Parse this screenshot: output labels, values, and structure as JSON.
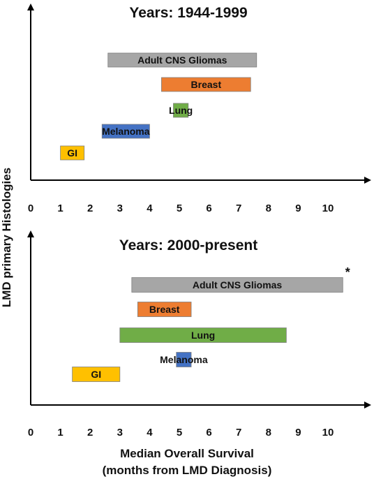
{
  "chart_data": [
    {
      "type": "bar",
      "subtype": "horizontal-range",
      "title": "Years: 1944-1999",
      "x": [
        0,
        1,
        2,
        3,
        4,
        5,
        6,
        7,
        8,
        9,
        10
      ],
      "xlim": [
        0,
        11
      ],
      "bars": [
        {
          "label": "Adult CNS Gliomas",
          "start": 2.6,
          "end": 7.6,
          "color": "#a6a6a6"
        },
        {
          "label": "Breast",
          "start": 4.4,
          "end": 7.4,
          "color": "#ed7d31"
        },
        {
          "label": "Lung",
          "start": 4.8,
          "end": 5.3,
          "color": "#70ad47"
        },
        {
          "label": "Melanoma",
          "start": 2.4,
          "end": 4.0,
          "color": "#4472c4"
        },
        {
          "label": "GI",
          "start": 1.0,
          "end": 1.8,
          "color": "#ffc000"
        }
      ]
    },
    {
      "type": "bar",
      "subtype": "horizontal-range",
      "title": "Years: 2000-present",
      "x": [
        0,
        1,
        2,
        3,
        4,
        5,
        6,
        7,
        8,
        9,
        10
      ],
      "xlim": [
        0,
        11
      ],
      "annotation": "*",
      "bars": [
        {
          "label": "Adult CNS Gliomas",
          "start": 3.4,
          "end": 10.5,
          "color": "#a6a6a6"
        },
        {
          "label": "Breast",
          "start": 3.6,
          "end": 5.4,
          "color": "#ed7d31"
        },
        {
          "label": "Lung",
          "start": 3.0,
          "end": 8.6,
          "color": "#70ad47"
        },
        {
          "label": "Melanoma",
          "start": 4.9,
          "end": 5.4,
          "color": "#4472c4"
        },
        {
          "label": "GI",
          "start": 1.4,
          "end": 3.0,
          "color": "#ffc000"
        }
      ]
    }
  ],
  "ylabel": "LMD primary Histologies",
  "xlabel_line1": "Median Overall Survival",
  "xlabel_line2": "(months from LMD Diagnosis)"
}
